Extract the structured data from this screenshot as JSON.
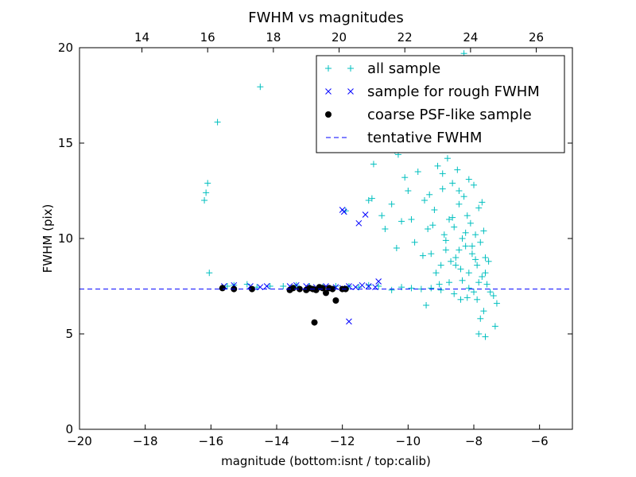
{
  "chart_data": {
    "type": "scatter",
    "title": "FWHM vs magnitudes",
    "xlabel": "magnitude (bottom:isnt / top:calib)",
    "ylabel": "FWHM (pix)",
    "xlim": [
      -20,
      -5
    ],
    "ylim": [
      0,
      20
    ],
    "xticks": [
      "−20",
      "−18",
      "−16",
      "−14",
      "−12",
      "−10",
      "−8",
      "−6"
    ],
    "yticks": [
      "0",
      "5",
      "10",
      "15",
      "20"
    ],
    "top_axis": {
      "ticks": [
        "14",
        "16",
        "18",
        "20",
        "22",
        "24",
        "26"
      ],
      "offset_from_bottom": 32.1
    },
    "legend": {
      "position": "top-right"
    },
    "tentative_fwhm": 7.35,
    "series": [
      {
        "name": "all sample",
        "marker": "+",
        "color": "#00bfbf",
        "points": [
          [
            -16.2,
            12.0
          ],
          [
            -16.15,
            12.4
          ],
          [
            -16.1,
            12.9
          ],
          [
            -16.05,
            8.2
          ],
          [
            -15.8,
            16.1
          ],
          [
            -14.5,
            17.95
          ],
          [
            -15.5,
            7.5
          ],
          [
            -15.3,
            7.55
          ],
          [
            -14.9,
            7.6
          ],
          [
            -14.6,
            7.45
          ],
          [
            -14.2,
            7.5
          ],
          [
            -13.8,
            7.5
          ],
          [
            -13.4,
            7.55
          ],
          [
            -13.0,
            7.5
          ],
          [
            -12.6,
            7.45
          ],
          [
            -12.2,
            7.5
          ],
          [
            -11.8,
            7.5
          ],
          [
            -11.5,
            7.45
          ],
          [
            -11.2,
            7.55
          ],
          [
            -10.9,
            7.5
          ],
          [
            -11.9,
            11.45
          ],
          [
            -11.2,
            12.0
          ],
          [
            -11.1,
            12.1
          ],
          [
            -11.05,
            13.9
          ],
          [
            -10.8,
            11.2
          ],
          [
            -10.7,
            10.5
          ],
          [
            -10.5,
            11.8
          ],
          [
            -10.4,
            14.6
          ],
          [
            -10.35,
            9.5
          ],
          [
            -10.2,
            10.9
          ],
          [
            -10.1,
            13.2
          ],
          [
            -10.0,
            12.5
          ],
          [
            -9.9,
            11.0
          ],
          [
            -9.8,
            9.8
          ],
          [
            -9.7,
            13.5
          ],
          [
            -9.6,
            14.8
          ],
          [
            -9.5,
            12.0
          ],
          [
            -9.4,
            10.5
          ],
          [
            -9.3,
            9.2
          ],
          [
            -9.2,
            11.5
          ],
          [
            -9.1,
            13.8
          ],
          [
            -9.0,
            8.6
          ],
          [
            -8.95,
            12.6
          ],
          [
            -8.9,
            10.2
          ],
          [
            -8.85,
            9.4
          ],
          [
            -8.8,
            14.2
          ],
          [
            -8.75,
            11.0
          ],
          [
            -8.7,
            8.8
          ],
          [
            -8.65,
            12.9
          ],
          [
            -8.6,
            10.6
          ],
          [
            -8.55,
            9.0
          ],
          [
            -8.5,
            13.6
          ],
          [
            -8.45,
            11.8
          ],
          [
            -8.4,
            8.4
          ],
          [
            -8.35,
            10.0
          ],
          [
            -8.3,
            12.2
          ],
          [
            -8.25,
            9.6
          ],
          [
            -8.2,
            11.2
          ],
          [
            -8.15,
            8.2
          ],
          [
            -8.1,
            10.8
          ],
          [
            -8.05,
            9.2
          ],
          [
            -8.0,
            12.8
          ],
          [
            -7.95,
            10.2
          ],
          [
            -7.9,
            8.6
          ],
          [
            -7.85,
            11.6
          ],
          [
            -7.8,
            9.8
          ],
          [
            -7.75,
            8.0
          ],
          [
            -7.7,
            10.4
          ],
          [
            -7.65,
            9.0
          ],
          [
            -7.6,
            7.6
          ],
          [
            -7.55,
            8.8
          ],
          [
            -7.5,
            7.2
          ],
          [
            -7.4,
            7.0
          ],
          [
            -7.3,
            6.6
          ],
          [
            -8.3,
            19.7
          ],
          [
            -8.05,
            19.4
          ],
          [
            -8.2,
            16.8
          ],
          [
            -8.4,
            15.2
          ],
          [
            -8.6,
            16.0
          ],
          [
            -8.9,
            15.8
          ],
          [
            -9.2,
            15.1
          ],
          [
            -9.7,
            15.3
          ],
          [
            -10.3,
            14.4
          ],
          [
            -9.3,
            7.4
          ],
          [
            -9.0,
            7.3
          ],
          [
            -8.6,
            7.1
          ],
          [
            -8.2,
            6.9
          ],
          [
            -7.9,
            6.8
          ],
          [
            -7.8,
            5.8
          ],
          [
            -7.85,
            5.0
          ],
          [
            -7.65,
            4.85
          ],
          [
            -7.35,
            5.4
          ],
          [
            -7.7,
            6.2
          ],
          [
            -8.0,
            7.2
          ],
          [
            -8.4,
            6.8
          ],
          [
            -9.6,
            7.35
          ],
          [
            -9.9,
            7.4
          ],
          [
            -10.2,
            7.45
          ],
          [
            -10.5,
            7.3
          ],
          [
            -9.45,
            6.5
          ],
          [
            -8.75,
            7.7
          ],
          [
            -8.15,
            7.4
          ],
          [
            -9.15,
            8.2
          ],
          [
            -8.55,
            8.6
          ],
          [
            -7.95,
            8.9
          ],
          [
            -9.55,
            9.1
          ],
          [
            -8.85,
            9.9
          ],
          [
            -8.25,
            10.3
          ],
          [
            -9.25,
            10.7
          ],
          [
            -8.65,
            11.1
          ],
          [
            -7.75,
            11.9
          ],
          [
            -9.35,
            12.3
          ],
          [
            -8.45,
            12.5
          ],
          [
            -8.15,
            13.1
          ],
          [
            -8.95,
            13.4
          ],
          [
            -7.65,
            8.2
          ],
          [
            -7.85,
            7.7
          ],
          [
            -8.35,
            7.8
          ],
          [
            -9.05,
            7.6
          ],
          [
            -8.45,
            9.4
          ],
          [
            -8.05,
            9.6
          ]
        ]
      },
      {
        "name": "sample for rough FWHM",
        "marker": "x",
        "color": "#0000ff",
        "points": [
          [
            -15.6,
            7.5
          ],
          [
            -15.3,
            7.55
          ],
          [
            -14.8,
            7.5
          ],
          [
            -14.5,
            7.45
          ],
          [
            -14.3,
            7.5
          ],
          [
            -13.6,
            7.5
          ],
          [
            -13.4,
            7.55
          ],
          [
            -13.1,
            7.5
          ],
          [
            -12.8,
            7.45
          ],
          [
            -12.5,
            7.5
          ],
          [
            -12.2,
            7.45
          ],
          [
            -12.0,
            7.4
          ],
          [
            -11.8,
            7.5
          ],
          [
            -11.6,
            7.45
          ],
          [
            -11.4,
            7.55
          ],
          [
            -11.2,
            7.5
          ],
          [
            -11.0,
            7.45
          ],
          [
            -10.9,
            7.75
          ],
          [
            -12.0,
            11.5
          ],
          [
            -11.95,
            11.4
          ],
          [
            -11.5,
            10.8
          ],
          [
            -11.3,
            11.25
          ],
          [
            -11.8,
            5.65
          ]
        ]
      },
      {
        "name": "coarse PSF-like sample",
        "marker": "o",
        "color": "#000000",
        "points": [
          [
            -15.65,
            7.4
          ],
          [
            -15.3,
            7.35
          ],
          [
            -14.75,
            7.35
          ],
          [
            -13.6,
            7.3
          ],
          [
            -13.5,
            7.4
          ],
          [
            -13.3,
            7.35
          ],
          [
            -13.1,
            7.3
          ],
          [
            -13.0,
            7.4
          ],
          [
            -12.9,
            7.35
          ],
          [
            -12.8,
            7.3
          ],
          [
            -12.7,
            7.45
          ],
          [
            -12.6,
            7.4
          ],
          [
            -12.5,
            7.15
          ],
          [
            -12.4,
            7.4
          ],
          [
            -12.3,
            7.35
          ],
          [
            -12.2,
            6.75
          ],
          [
            -12.0,
            7.35
          ],
          [
            -11.9,
            7.35
          ],
          [
            -12.85,
            5.6
          ]
        ]
      },
      {
        "name": "tentative FWHM",
        "marker": "--",
        "color": "#0000ff",
        "values": [
          7.35
        ]
      }
    ]
  }
}
